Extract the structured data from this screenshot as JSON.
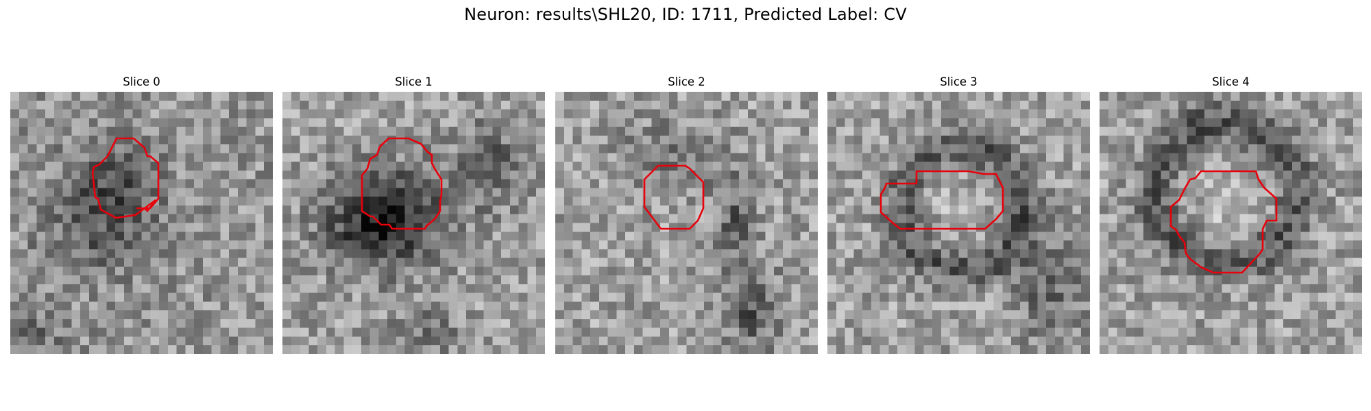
{
  "figure": {
    "title": "Neuron: results\\SHL20, ID: 1711, Predicted Label: CV",
    "contour_color": "#e8000b"
  },
  "panels": [
    {
      "title": "Slice 0"
    },
    {
      "title": "Slice 1"
    },
    {
      "title": "Slice 2"
    },
    {
      "title": "Slice 3"
    },
    {
      "title": "Slice 4"
    }
  ]
}
